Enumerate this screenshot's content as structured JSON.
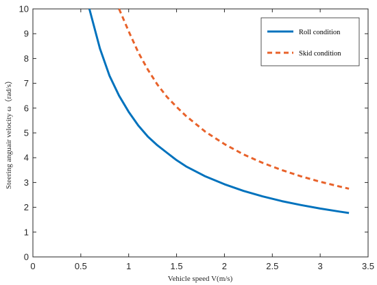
{
  "chart_data": {
    "type": "line",
    "xlabel": "Vehicle speed V(m/s)",
    "ylabel": "Steering anguair velocity  ω（rad/s）",
    "xlim": [
      0,
      3.5
    ],
    "ylim": [
      0,
      10
    ],
    "xticks": [
      "0",
      "0.5",
      "1",
      "1.5",
      "2",
      "2.5",
      "3",
      "3.5"
    ],
    "yticks": [
      "0",
      "1",
      "2",
      "3",
      "4",
      "5",
      "6",
      "7",
      "8",
      "9",
      "10"
    ],
    "grid": false,
    "legend_position": "top-right",
    "series": [
      {
        "name": "Roll condition",
        "color": "#0072BD",
        "style": "solid",
        "x": [
          0.59,
          0.7,
          0.8,
          0.9,
          1.0,
          1.1,
          1.2,
          1.3,
          1.4,
          1.5,
          1.6,
          1.8,
          2.0,
          2.2,
          2.4,
          2.6,
          2.8,
          3.0,
          3.2,
          3.3
        ],
        "y": [
          10.0,
          8.4,
          7.3,
          6.5,
          5.85,
          5.3,
          4.85,
          4.5,
          4.2,
          3.9,
          3.65,
          3.25,
          2.93,
          2.66,
          2.44,
          2.25,
          2.09,
          1.95,
          1.83,
          1.77
        ]
      },
      {
        "name": "Skid condition",
        "color": "#E8622A",
        "style": "dashed",
        "x": [
          0.9,
          1.0,
          1.1,
          1.2,
          1.3,
          1.4,
          1.5,
          1.6,
          1.8,
          2.0,
          2.2,
          2.4,
          2.6,
          2.8,
          3.0,
          3.2,
          3.3
        ],
        "y": [
          10.0,
          9.1,
          8.25,
          7.55,
          6.95,
          6.45,
          6.05,
          5.68,
          5.05,
          4.55,
          4.13,
          3.79,
          3.5,
          3.25,
          3.03,
          2.84,
          2.75
        ]
      }
    ]
  }
}
